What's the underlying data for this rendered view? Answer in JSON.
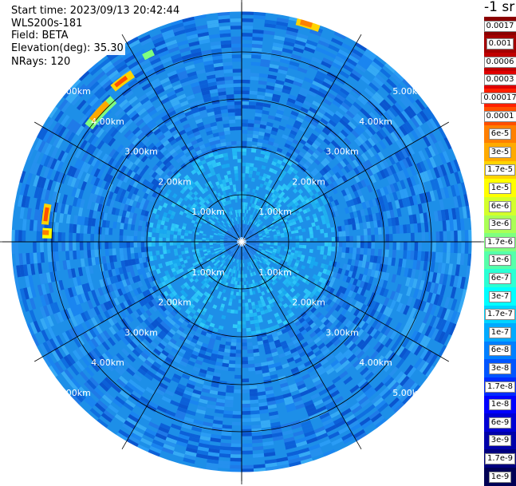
{
  "info": {
    "start_time": "Start time: 2023/09/13 20:42:44",
    "instrument": "WLS200s-181",
    "field": "Field: BETA",
    "elevation": "Elevation(deg): 35.30",
    "nrays": "NRays: 120"
  },
  "range_labels": [
    "1.00km",
    "2.00km",
    "3.00km",
    "4.00km",
    "5.00km"
  ],
  "colorbar": {
    "units": "-1 sr",
    "labels": [
      "0.0017",
      "0.001",
      "0.0006",
      "0.0003",
      "0.00017",
      "0.0001",
      "6e-5",
      "3e-5",
      "1.7e-5",
      "1e-5",
      "6e-6",
      "3e-6",
      "1.7e-6",
      "1e-6",
      "6e-7",
      "3e-7",
      "1.7e-7",
      "1e-7",
      "6e-8",
      "3e-8",
      "1.7e-8",
      "1e-8",
      "6e-9",
      "3e-9",
      "1.7e-9",
      "1e-9"
    ],
    "colors": [
      "#8b0000",
      "#a30000",
      "#c00000",
      "#e00000",
      "#ff2000",
      "#ff4f00",
      "#ff7f00",
      "#ffaa00",
      "#ffd400",
      "#ffff00",
      "#d4ff2b",
      "#aaff55",
      "#7fff7f",
      "#55ffaa",
      "#2bffd4",
      "#00ffff",
      "#00d4ff",
      "#00aaff",
      "#007fff",
      "#0055ff",
      "#002bff",
      "#0000ff",
      "#0000d4",
      "#0000aa",
      "#00007f",
      "#000055"
    ]
  },
  "colors": {
    "background": "#ffffff",
    "grid": "#000000",
    "range_label": "#ffffff"
  }
}
